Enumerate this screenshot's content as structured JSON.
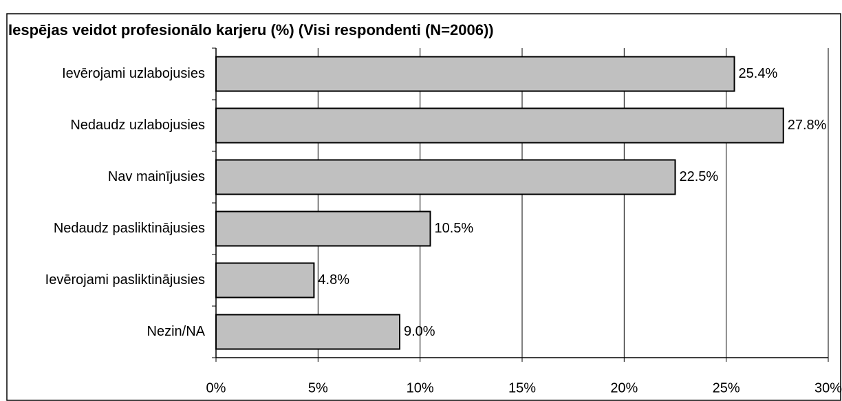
{
  "chart_data": {
    "type": "bar",
    "orientation": "horizontal",
    "title": "Iespējas veidot profesionālo karjeru (%) (Visi respondenti (N=2006))",
    "categories": [
      "Ievērojami uzlabojusies",
      "Nedaudz uzlabojusies",
      "Nav mainījusies",
      "Nedaudz pasliktinājusies",
      "Ievērojami pasliktinājusies",
      "Nezin/NA"
    ],
    "values": [
      25.4,
      27.8,
      22.5,
      10.5,
      4.8,
      9.0
    ],
    "value_labels": [
      "25.4%",
      "27.8%",
      "22.5%",
      "10.5%",
      "4.8%",
      "9.0%"
    ],
    "color": "#c0c0c0",
    "xlim": [
      0,
      30
    ],
    "xticks": [
      {
        "value": 0,
        "label": "0%"
      },
      {
        "value": 5,
        "label": "5%"
      },
      {
        "value": 10,
        "label": "10%"
      },
      {
        "value": 15,
        "label": "15%"
      },
      {
        "value": 20,
        "label": "20%"
      },
      {
        "value": 25,
        "label": "25%"
      },
      {
        "value": 30,
        "label": "30%"
      }
    ],
    "grid": true
  }
}
